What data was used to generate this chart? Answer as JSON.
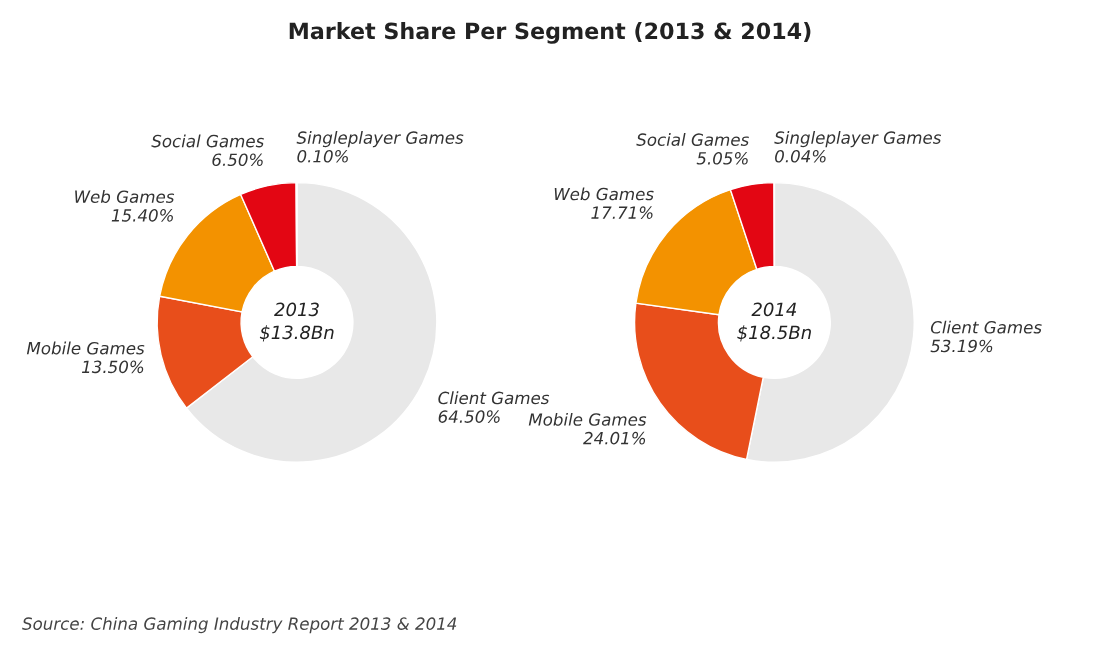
{
  "chart_data": [
    {
      "type": "donut",
      "title": "Market Share Per Segment (2013 & 2014)",
      "categories": [
        "Client Games",
        "Mobile Games",
        "Web Games",
        "Social Games",
        "Singleplayer Games"
      ],
      "values": [
        64.5,
        13.5,
        15.4,
        6.5,
        0.1
      ],
      "value_labels": [
        "64.50%",
        "13.50%",
        "15.40%",
        "6.50%",
        "0.10%"
      ],
      "colors": [
        "#e8e8e8",
        "#e84e1b",
        "#f39200",
        "#e30613",
        "#f5a623"
      ],
      "annotations": [
        "2013",
        "$13.8Bn",
        "Source: China Gaming Industry Report 2013 & 2014"
      ]
    },
    {
      "type": "donut",
      "categories": [
        "Client Games",
        "Mobile Games",
        "Web Games",
        "Social Games",
        "Singleplayer Games"
      ],
      "values": [
        53.19,
        24.01,
        17.71,
        5.05,
        0.04
      ],
      "value_labels": [
        "53.19%",
        "24.01%",
        "17.71%",
        "5.05%",
        "0.04%"
      ],
      "colors": [
        "#e8e8e8",
        "#e84e1b",
        "#f39200",
        "#e30613",
        "#f5a623"
      ],
      "annotations": [
        "2014",
        "$18.5Bn"
      ]
    }
  ]
}
